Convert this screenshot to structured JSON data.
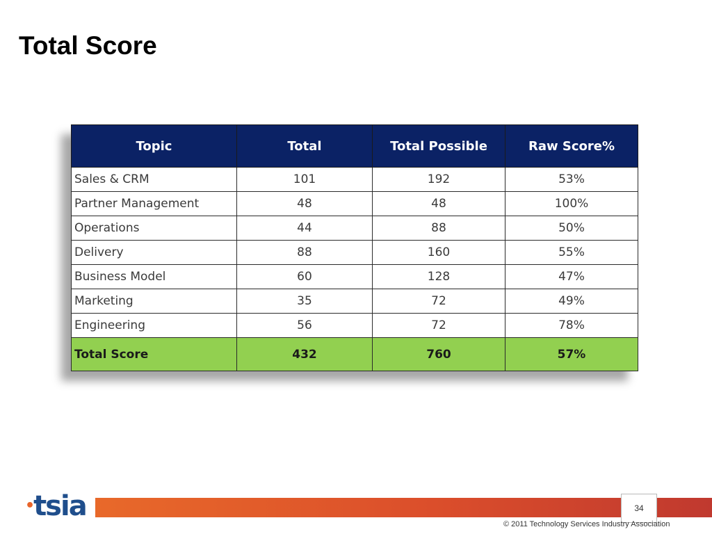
{
  "slide": {
    "title": "Total Score",
    "page_number": "34",
    "copyright": "© 2011 Technology Services Industry Association",
    "logo_text": "tsia"
  },
  "table": {
    "headers": [
      "Topic",
      "Total",
      "Total Possible",
      "Raw Score%"
    ],
    "rows": [
      [
        "Sales & CRM",
        "101",
        "192",
        "53%"
      ],
      [
        "Partner Management",
        "48",
        "48",
        "100%"
      ],
      [
        "Operations",
        "44",
        "88",
        "50%"
      ],
      [
        "Delivery",
        "88",
        "160",
        "55%"
      ],
      [
        "Business Model",
        "60",
        "128",
        "47%"
      ],
      [
        "Marketing",
        "35",
        "72",
        "49%"
      ],
      [
        "Engineering",
        "56",
        "72",
        "78%"
      ]
    ],
    "total_row": [
      "Total Score",
      "432",
      "760",
      "57%"
    ]
  },
  "colors": {
    "header_bg": "#0b2265",
    "total_row_bg": "#92d050",
    "footer_bar": "#db4e2b",
    "logo_blue": "#1f4e8c",
    "logo_orange": "#e8652b"
  }
}
